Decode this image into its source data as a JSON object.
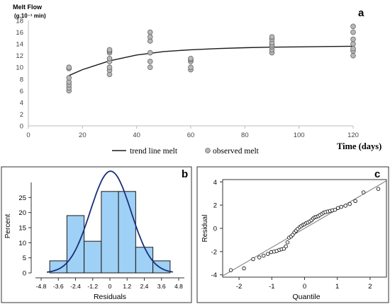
{
  "chart_data": [
    {
      "panel": "a",
      "type": "scatter",
      "ylabel": "Melt Flow (g.10⁻¹ min)",
      "ylabel_main": "Melt Flow",
      "ylabel_unit": "(g.10⁻¹ min)",
      "xlabel": "Time (days)",
      "xlim": [
        0,
        120
      ],
      "ylim": [
        0,
        18
      ],
      "xticks": [
        0,
        20,
        40,
        60,
        80,
        100,
        120
      ],
      "yticks": [
        0,
        2,
        4,
        6,
        8,
        10,
        12,
        14,
        16,
        18
      ],
      "legend": [
        "trend line melt",
        "observed melt"
      ],
      "legend_position": "bottom",
      "grid": false,
      "series": [
        {
          "name": "observed melt",
          "type": "scatter",
          "x": [
            15,
            15,
            15,
            15,
            15,
            15,
            15,
            30,
            30,
            30,
            30,
            30,
            30,
            30,
            30,
            45,
            45,
            45,
            45,
            45,
            45,
            60,
            60,
            60,
            60,
            60,
            90,
            90,
            90,
            90,
            90,
            90,
            90,
            120,
            120,
            120,
            120,
            120,
            120,
            120
          ],
          "y": [
            6.0,
            6.5,
            7.0,
            7.5,
            8.2,
            9.8,
            10.0,
            8.8,
            9.5,
            10.0,
            11.0,
            11.5,
            12.5,
            12.8,
            13.0,
            10.0,
            11.0,
            12.5,
            14.5,
            15.2,
            16.0,
            9.6,
            10.0,
            11.0,
            11.3,
            11.5,
            12.5,
            13.0,
            13.5,
            13.8,
            14.2,
            14.8,
            15.2,
            12.0,
            12.8,
            13.2,
            14.0,
            14.8,
            16.0,
            17.0
          ]
        },
        {
          "name": "trend line melt",
          "type": "line",
          "x": [
            15,
            20,
            30,
            40,
            45,
            50,
            60,
            70,
            80,
            90,
            100,
            110,
            120
          ],
          "y": [
            8.6,
            9.6,
            11.1,
            12.1,
            12.4,
            12.7,
            13.0,
            13.2,
            13.35,
            13.45,
            13.5,
            13.55,
            13.6
          ]
        }
      ]
    },
    {
      "panel": "b",
      "type": "bar",
      "xlabel": "Residuals",
      "ylabel": "Percent",
      "ylim": [
        0,
        30
      ],
      "yticks": [
        0,
        5,
        10,
        15,
        20,
        25
      ],
      "xticks": [
        "-4.8",
        "-3.6",
        "-2.4",
        "-1.2",
        "0",
        "1.2",
        "2.4",
        "3.6",
        "4.8"
      ],
      "bin_edges": [
        -4.2,
        -3.0,
        -1.8,
        -0.6,
        0.6,
        1.8,
        3.0,
        4.2
      ],
      "values": [
        4,
        19,
        10.5,
        27,
        27,
        8.5,
        4
      ],
      "bar_color": "#9fd0f5",
      "curve_color": "#1a2f7a",
      "normal_curve": {
        "mean": 0.05,
        "sd": 1.42,
        "scale_percent_per_bin": 1.2
      }
    },
    {
      "panel": "c",
      "type": "scatter",
      "xlabel": "Quantile",
      "ylabel": "Residual",
      "xlim": [
        -2.5,
        2.5
      ],
      "ylim": [
        -4.2,
        4.2
      ],
      "xticks": [
        -2,
        -1,
        0,
        1,
        2
      ],
      "yticks": [
        -4,
        -2,
        0,
        2,
        4
      ],
      "reference_line": {
        "x": [
          -2.5,
          2.5
        ],
        "y": [
          -4.1,
          4.1
        ]
      },
      "x": [
        -2.25,
        -1.85,
        -1.57,
        -1.38,
        -1.25,
        -1.12,
        -1.02,
        -0.93,
        -0.85,
        -0.77,
        -0.7,
        -0.63,
        -0.57,
        -0.52,
        -0.47,
        -0.41,
        -0.36,
        -0.31,
        -0.26,
        -0.21,
        -0.15,
        -0.1,
        -0.05,
        0.0,
        0.05,
        0.1,
        0.16,
        0.21,
        0.26,
        0.31,
        0.36,
        0.42,
        0.47,
        0.53,
        0.58,
        0.64,
        0.71,
        0.78,
        0.85,
        0.93,
        1.02,
        1.12,
        1.25,
        1.38,
        1.55,
        1.8,
        2.25
      ],
      "y": [
        -3.6,
        -3.45,
        -2.65,
        -2.5,
        -2.35,
        -2.2,
        -2.05,
        -2.0,
        -1.95,
        -1.85,
        -1.8,
        -1.75,
        -1.55,
        -1.2,
        -0.8,
        -0.7,
        -0.55,
        -0.35,
        -0.2,
        -0.05,
        0.1,
        0.2,
        0.3,
        0.35,
        0.45,
        0.5,
        0.6,
        0.7,
        0.85,
        0.95,
        1.0,
        1.05,
        1.15,
        1.25,
        1.35,
        1.4,
        1.45,
        1.5,
        1.55,
        1.6,
        1.75,
        1.85,
        1.95,
        2.1,
        2.35,
        3.1,
        3.4
      ]
    }
  ],
  "panel_labels": {
    "a": "a",
    "b": "b",
    "c": "c"
  }
}
